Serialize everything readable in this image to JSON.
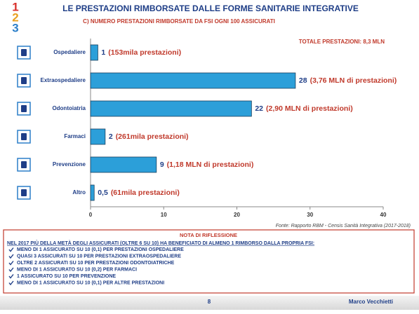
{
  "chart_data": {
    "type": "hbar",
    "title": "LE PRESTAZIONI RIMBORSATE DALLE FORME SANITARIE INTEGRATIVE",
    "subtitle": "C) NUMERO PRESTAZIONI RIMBORSATE DA FSI OGNI 100 ASSICURATI",
    "total_note": "TOTALE PRESTAZIONI: 8,3 MLN",
    "source": "Fonte: Rapporto RBM - Censis Sanità Integrativa (2017-2018)",
    "categories": [
      "Ospedaliere",
      "Extraospedaliere",
      "Odontoiatria",
      "Farmaci",
      "Prevenzione",
      "Altro"
    ],
    "values": [
      1,
      28,
      22,
      2,
      9,
      0.5
    ],
    "value_labels": [
      "1",
      "28",
      "22",
      "2",
      "9",
      "0,5"
    ],
    "annotations": [
      "(153mila prestazioni)",
      "(3,76 MLN di prestazioni)",
      "(2,90 MLN di prestazioni)",
      "(261mila prestazioni)",
      "(1,18 MLN di prestazioni)",
      "(61mila prestazioni)"
    ],
    "color": "#2c9fd9",
    "xlim": [
      0,
      40
    ],
    "xticks": [
      0,
      10,
      20,
      30,
      40
    ],
    "grid": false
  },
  "logo": [
    "1",
    "2",
    "3"
  ],
  "note": {
    "title": "NOTA DI RIFLESSIONE",
    "lead": "NEL 2017 PIÙ DELLA METÀ DEGLI ASSICURATI (OLTRE 6 SU 10) HA BENEFICIATO DI ALMENO 1 RIMBORSO DALLA PROPRIA FSI:",
    "items": [
      "MENO DI 1 ASSICURATO SU 10 (0,1) PER PRESTAZIONI OSPEDALIERE",
      "QUASI 3 ASSICURATI SU 10 PER PRESTAZIONI EXTRAOSPEDALIERE",
      "OLTRE 2 ASSICURATI SU 10 PER PRESTAZIONI ODONTOIATRICHE",
      "MENO DI 1 ASSICURATO SU 10 (0,2) PER FARMACI",
      "1 ASSICURATO SU 10 PER PREVENZIONE",
      "MENO DI 1 ASSICURATO SU 10 (0,1) PER ALTRE PRESTAZIONI"
    ]
  },
  "footer": {
    "page": "8",
    "author": "Marco Vecchietti"
  }
}
